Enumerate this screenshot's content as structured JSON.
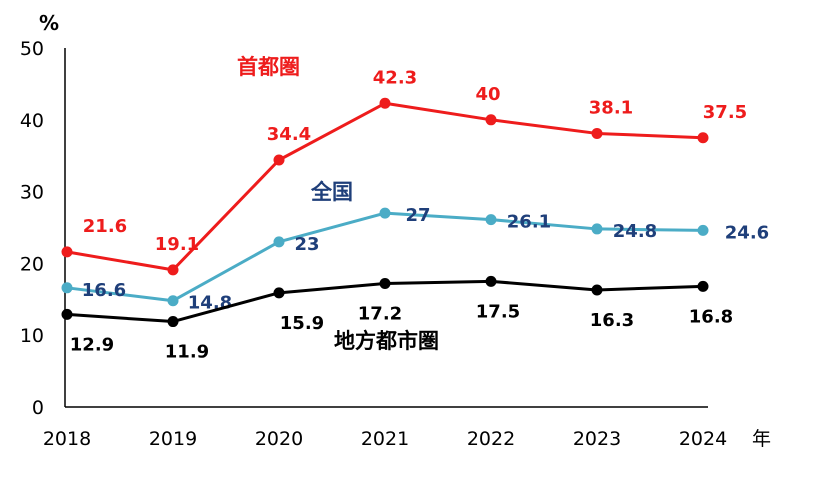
{
  "chart_data": {
    "type": "line",
    "ylabel": "%",
    "xlabel": "年",
    "ylim": [
      0,
      50
    ],
    "yticks": [
      "0",
      "10",
      "20",
      "30",
      "40",
      "50"
    ],
    "categories": [
      "2018",
      "2019",
      "2020",
      "2021",
      "2022",
      "2023",
      "2024"
    ],
    "grid": false,
    "series": [
      {
        "name": "首都圏",
        "color": "#ee1c1c",
        "values": [
          21.6,
          19.1,
          34.4,
          42.3,
          40,
          38.1,
          37.5
        ],
        "labels": [
          "21.6",
          "19.1",
          "34.4",
          "42.3",
          "40",
          "38.1",
          "37.5"
        ]
      },
      {
        "name": "全国",
        "color": "#4bacc6",
        "label_color": "#1f3f7a",
        "values": [
          16.6,
          14.8,
          23,
          27,
          26.1,
          24.8,
          24.6
        ],
        "labels": [
          "16.6",
          "14.8",
          "23",
          "27",
          "26.1",
          "24.8",
          "24.6"
        ]
      },
      {
        "name": "地方都市圏",
        "color": "#000000",
        "values": [
          12.9,
          11.9,
          15.9,
          17.2,
          17.5,
          16.3,
          16.8
        ],
        "labels": [
          "12.9",
          "11.9",
          "15.9",
          "17.2",
          "17.5",
          "16.3",
          "16.8"
        ]
      }
    ]
  }
}
